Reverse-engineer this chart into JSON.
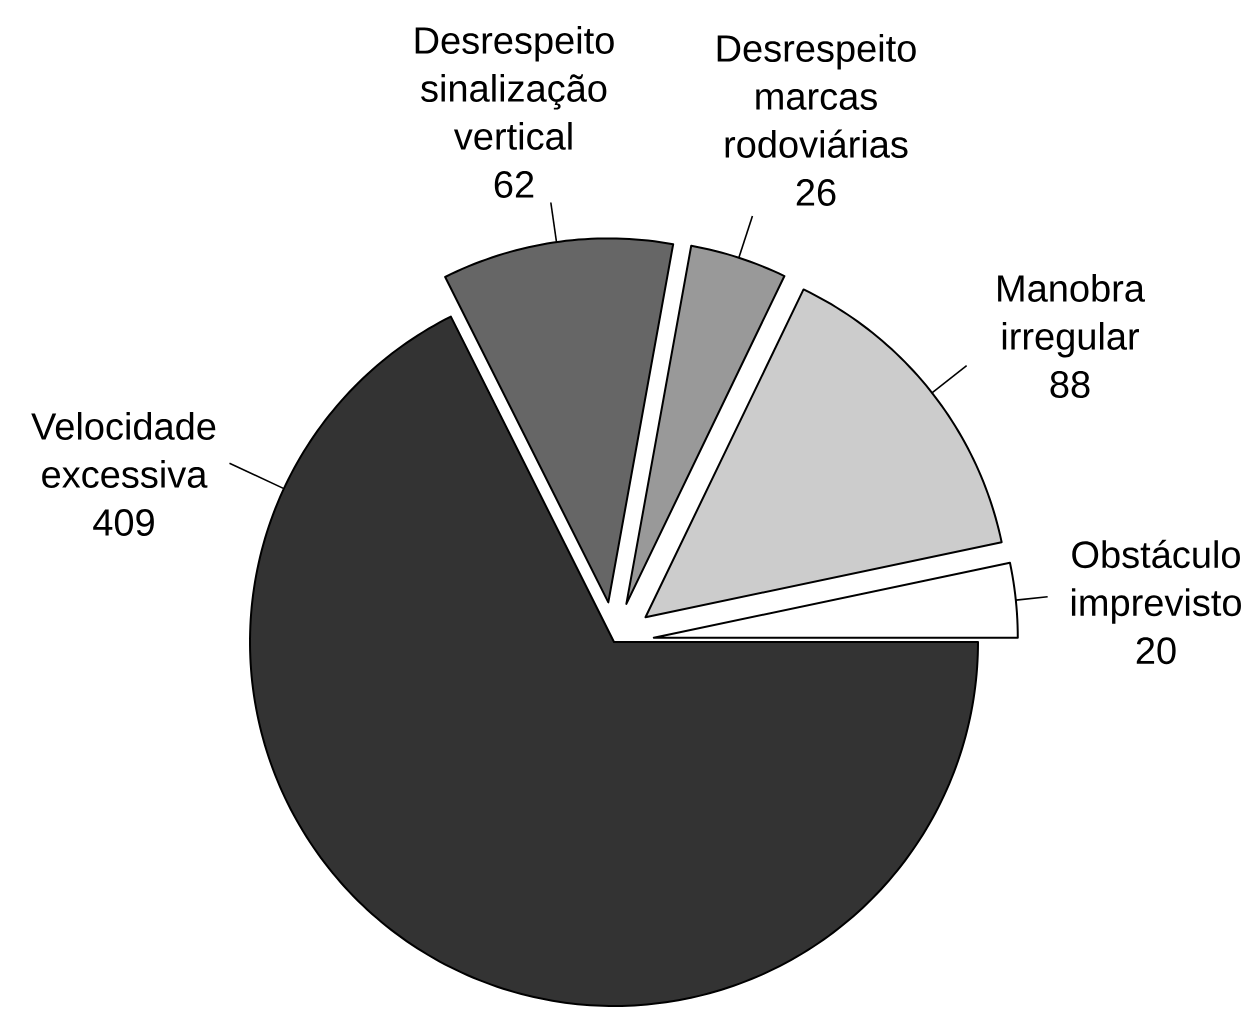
{
  "chart_data": {
    "type": "pie",
    "categories": [
      "Velocidade excessiva",
      "Desrespeito sinalização vertical",
      "Desrespeito marcas rodoviárias",
      "Manobra irregular",
      "Obstáculo imprevisto"
    ],
    "values": [
      409,
      62,
      26,
      88,
      20
    ],
    "colors": [
      "#333333",
      "#666666",
      "#999999",
      "#cccccc",
      "#ffffff"
    ],
    "data_labels": true
  }
}
